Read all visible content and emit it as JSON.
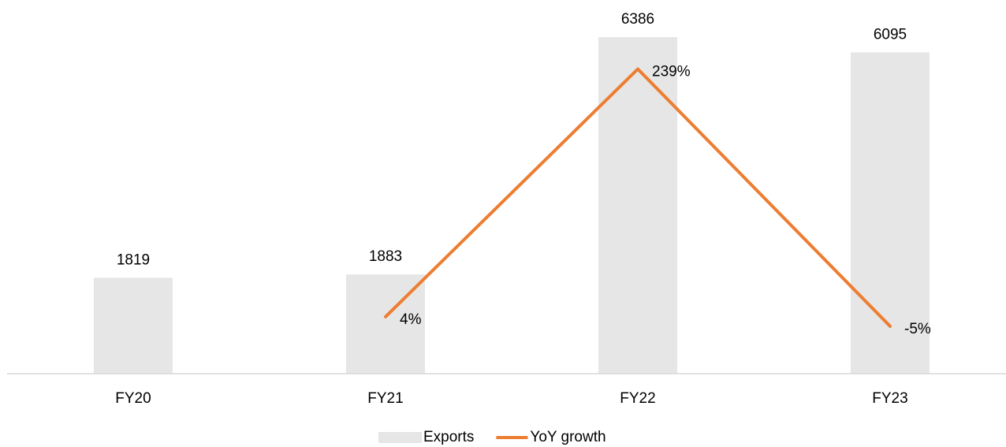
{
  "chart_data": {
    "type": "bar_line",
    "categories": [
      "FY20",
      "FY21",
      "FY22",
      "FY23"
    ],
    "series": [
      {
        "name": "Exports",
        "type": "bar",
        "color": "#e6e6e6",
        "values": [
          1819,
          1883,
          6386,
          6095
        ]
      },
      {
        "name": "YoY growth",
        "type": "line",
        "axis": "y2",
        "color": "#ed7d31",
        "values": [
          null,
          4,
          239,
          -5
        ],
        "value_labels": [
          null,
          "4%",
          "239%",
          "-5%"
        ]
      }
    ],
    "ylim": [
      0,
      7000
    ],
    "y2lim": [
      -50,
      300
    ],
    "legend": "bottom"
  }
}
